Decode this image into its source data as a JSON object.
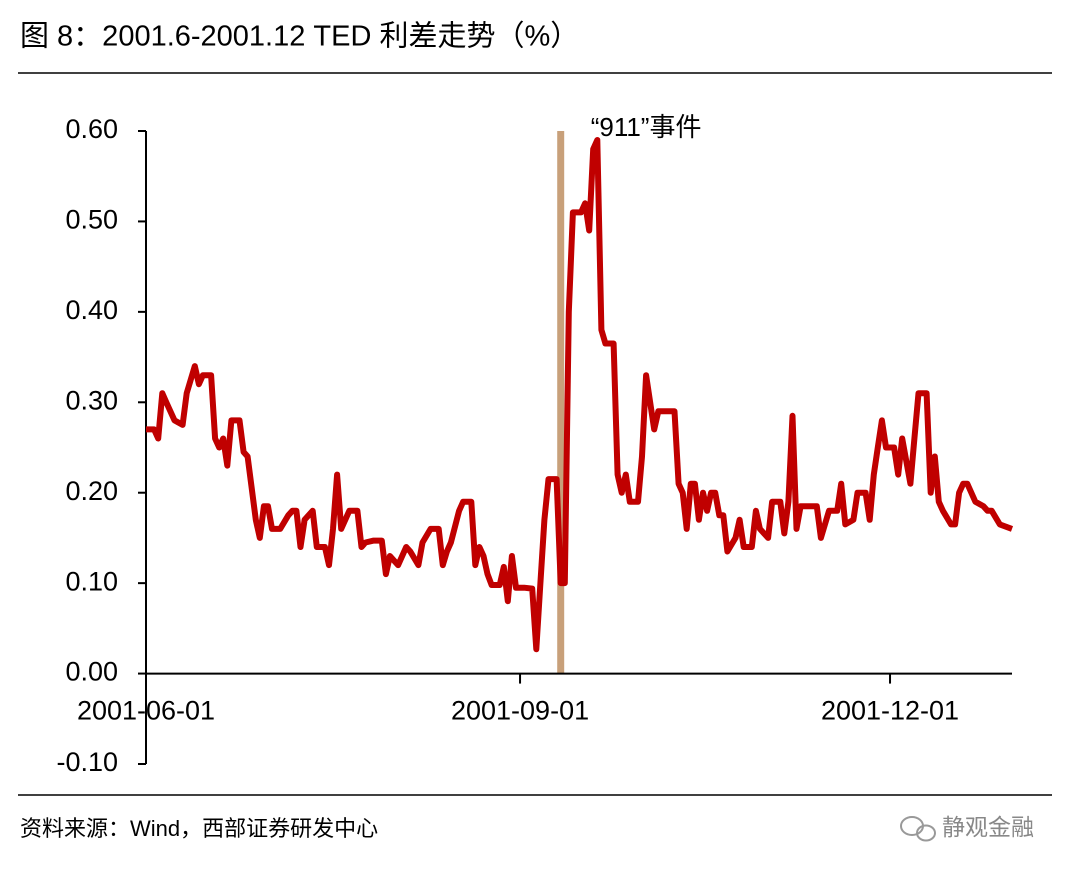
{
  "chart_data": {
    "type": "line",
    "title": "图 8：2001.6-2001.12 TED 利差走势（%）",
    "source": "资料来源：Wind，西部证券研发中心",
    "watermark": "静观金融",
    "color": "#c00000",
    "event_line": {
      "x": "2001-09-11",
      "label": "“911”事件",
      "color": "#c8a07a"
    },
    "xlim": [
      "2001-06-01",
      "2001-12-31"
    ],
    "xticks": [
      "2001-06-01",
      "2001-09-01",
      "2001-12-01"
    ],
    "ylim": [
      -0.1,
      0.6
    ],
    "yticks": [
      {
        "value": -0.1,
        "label": "-0.10"
      },
      {
        "value": 0,
        "label": "0.00"
      },
      {
        "value": 0.1,
        "label": "0.10"
      },
      {
        "value": 0.2,
        "label": "0.20"
      },
      {
        "value": 0.3,
        "label": "0.30"
      },
      {
        "value": 0.4,
        "label": "0.40"
      },
      {
        "value": 0.5,
        "label": "0.50"
      },
      {
        "value": 0.6,
        "label": "0.60"
      }
    ],
    "x": [
      "2001-06-01",
      "2001-06-03",
      "2001-06-04",
      "2001-06-05",
      "2001-06-06",
      "2001-06-08",
      "2001-06-10",
      "2001-06-11",
      "2001-06-13",
      "2001-06-14",
      "2001-06-15",
      "2001-06-17",
      "2001-06-18",
      "2001-06-19",
      "2001-06-20",
      "2001-06-21",
      "2001-06-22",
      "2001-06-24",
      "2001-06-25",
      "2001-06-26",
      "2001-06-28",
      "2001-06-29",
      "2001-06-30",
      "2001-07-01",
      "2001-07-02",
      "2001-07-04",
      "2001-07-06",
      "2001-07-07",
      "2001-07-08",
      "2001-07-09",
      "2001-07-10",
      "2001-07-12",
      "2001-07-13",
      "2001-07-15",
      "2001-07-16",
      "2001-07-17",
      "2001-07-18",
      "2001-07-19",
      "2001-07-21",
      "2001-07-23",
      "2001-07-24",
      "2001-07-25",
      "2001-07-27",
      "2001-07-29",
      "2001-07-30",
      "2001-07-31",
      "2001-08-02",
      "2001-08-04",
      "2001-08-05",
      "2001-08-07",
      "2001-08-08",
      "2001-08-10",
      "2001-08-12",
      "2001-08-13",
      "2001-08-14",
      "2001-08-15",
      "2001-08-17",
      "2001-08-18",
      "2001-08-20",
      "2001-08-21",
      "2001-08-22",
      "2001-08-23",
      "2001-08-24",
      "2001-08-25",
      "2001-08-27",
      "2001-08-28",
      "2001-08-29",
      "2001-08-30",
      "2001-08-31",
      "2001-09-02",
      "2001-09-04",
      "2001-09-05",
      "2001-09-06",
      "2001-09-07",
      "2001-09-08",
      "2001-09-10",
      "2001-09-11",
      "2001-09-12",
      "2001-09-13",
      "2001-09-14",
      "2001-09-16",
      "2001-09-17",
      "2001-09-18",
      "2001-09-19",
      "2001-09-20",
      "2001-09-21",
      "2001-09-22",
      "2001-09-24",
      "2001-09-25",
      "2001-09-26",
      "2001-09-27",
      "2001-09-28",
      "2001-09-30",
      "2001-10-01",
      "2001-10-02",
      "2001-10-04",
      "2001-10-05",
      "2001-10-07",
      "2001-10-09",
      "2001-10-10",
      "2001-10-11",
      "2001-10-12",
      "2001-10-13",
      "2001-10-14",
      "2001-10-15",
      "2001-10-16",
      "2001-10-17",
      "2001-10-18",
      "2001-10-19",
      "2001-10-20",
      "2001-10-21",
      "2001-10-22",
      "2001-10-24",
      "2001-10-25",
      "2001-10-26",
      "2001-10-28",
      "2001-10-29",
      "2001-10-30",
      "2001-11-01",
      "2001-11-02",
      "2001-11-04",
      "2001-11-05",
      "2001-11-06",
      "2001-11-07",
      "2001-11-08",
      "2001-11-09",
      "2001-11-10",
      "2001-11-11",
      "2001-11-13",
      "2001-11-14",
      "2001-11-16",
      "2001-11-18",
      "2001-11-19",
      "2001-11-20",
      "2001-11-22",
      "2001-11-23",
      "2001-11-25",
      "2001-11-26",
      "2001-11-27",
      "2001-11-28",
      "2001-11-29",
      "2001-11-30",
      "2001-12-02",
      "2001-12-03",
      "2001-12-04",
      "2001-12-06",
      "2001-12-07",
      "2001-12-08",
      "2001-12-10",
      "2001-12-11",
      "2001-12-12",
      "2001-12-13",
      "2001-12-14",
      "2001-12-16",
      "2001-12-17",
      "2001-12-18",
      "2001-12-19",
      "2001-12-20",
      "2001-12-22",
      "2001-12-24",
      "2001-12-25",
      "2001-12-26",
      "2001-12-28",
      "2001-12-31"
    ],
    "values": [
      0.27,
      0.27,
      0.26,
      0.31,
      0.3,
      0.28,
      0.275,
      0.31,
      0.34,
      0.32,
      0.33,
      0.33,
      0.26,
      0.25,
      0.26,
      0.23,
      0.28,
      0.28,
      0.245,
      0.24,
      0.17,
      0.15,
      0.185,
      0.185,
      0.16,
      0.16,
      0.175,
      0.18,
      0.18,
      0.14,
      0.17,
      0.18,
      0.14,
      0.14,
      0.12,
      0.16,
      0.22,
      0.16,
      0.18,
      0.18,
      0.14,
      0.145,
      0.147,
      0.147,
      0.11,
      0.13,
      0.12,
      0.14,
      0.135,
      0.12,
      0.145,
      0.16,
      0.16,
      0.12,
      0.135,
      0.145,
      0.18,
      0.19,
      0.19,
      0.12,
      0.14,
      0.13,
      0.11,
      0.098,
      0.098,
      0.118,
      0.08,
      0.13,
      0.095,
      0.095,
      0.094,
      0.027,
      0.1,
      0.17,
      0.215,
      0.215,
      0.1,
      0.1,
      0.4,
      0.51,
      0.51,
      0.52,
      0.49,
      0.58,
      0.59,
      0.38,
      0.365,
      0.365,
      0.22,
      0.2,
      0.22,
      0.19,
      0.19,
      0.24,
      0.33,
      0.27,
      0.29,
      0.29,
      0.29,
      0.21,
      0.2,
      0.16,
      0.21,
      0.21,
      0.17,
      0.2,
      0.18,
      0.2,
      0.2,
      0.175,
      0.175,
      0.135,
      0.15,
      0.17,
      0.14,
      0.14,
      0.18,
      0.16,
      0.15,
      0.19,
      0.19,
      0.155,
      0.19,
      0.285,
      0.16,
      0.185,
      0.185,
      0.185,
      0.185,
      0.15,
      0.18,
      0.18,
      0.21,
      0.165,
      0.17,
      0.2,
      0.2,
      0.17,
      0.22,
      0.25,
      0.28,
      0.25,
      0.25,
      0.22,
      0.26,
      0.21,
      0.26,
      0.31,
      0.31,
      0.2,
      0.24,
      0.19,
      0.18,
      0.165,
      0.165,
      0.2,
      0.21,
      0.21,
      0.19,
      0.185,
      0.18,
      0.18,
      0.165,
      0.16
    ]
  }
}
